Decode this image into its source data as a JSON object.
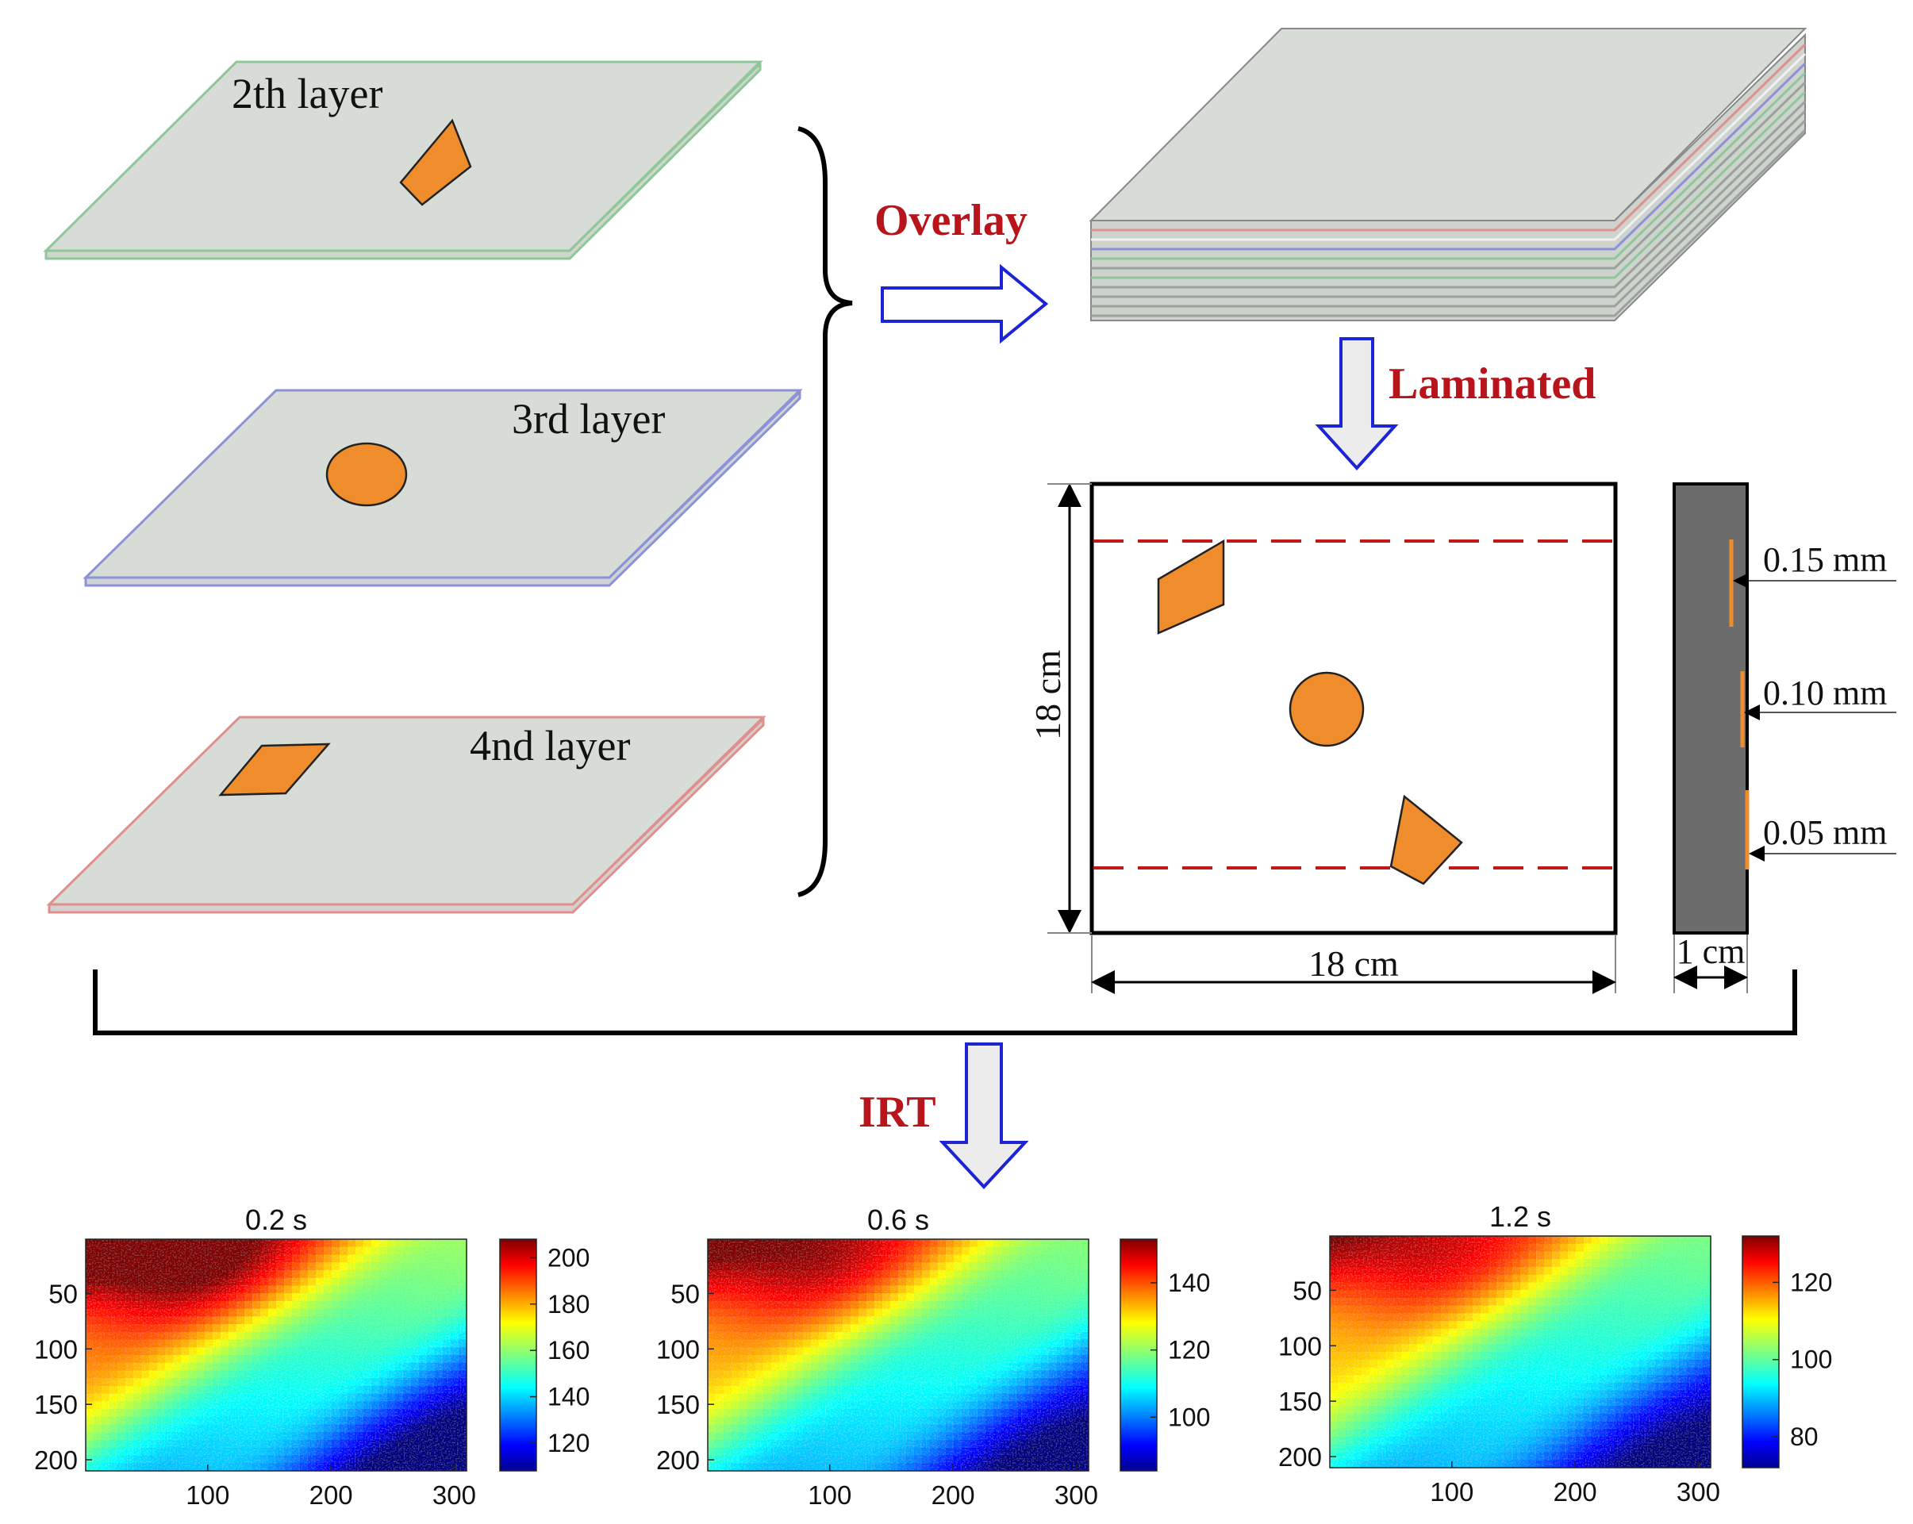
{
  "colors": {
    "plate_fill": "#d8dcd6",
    "green_edge": "#8fc79a",
    "blue_edge": "#8c92d6",
    "red_edge": "#e0908c",
    "defect_orange": "#ef8c2c",
    "label_red": "#b8141c",
    "arrow_blue": "#1c24d6",
    "dashed_red": "#c01818",
    "side_gray": "#6c6c6c"
  },
  "layers": [
    {
      "label": "2th layer",
      "defect": "quadrilateral",
      "edge_color": "green"
    },
    {
      "label": "3rd layer",
      "defect": "circle",
      "edge_color": "blue"
    },
    {
      "label": "4nd layer",
      "defect": "parallelogram",
      "edge_color": "red"
    }
  ],
  "steps": {
    "overlay": "Overlay",
    "laminated": "Laminated",
    "irt": "IRT"
  },
  "specimen": {
    "width_label": "18 cm",
    "height_label": "18 cm",
    "thickness_label": "1 cm",
    "depths": [
      "0.15 mm",
      "0.10 mm",
      "0.05 mm"
    ]
  },
  "thermograms": [
    {
      "title": "0.2 s",
      "x_ticks": [
        "100",
        "200",
        "300"
      ],
      "y_ticks": [
        "50",
        "100",
        "150",
        "200"
      ],
      "colorbar_ticks": [
        "200",
        "180",
        "160",
        "140",
        "120"
      ],
      "clim": [
        108,
        208
      ],
      "hot_level": 1.0
    },
    {
      "title": "0.6 s",
      "x_ticks": [
        "100",
        "200",
        "300"
      ],
      "y_ticks": [
        "50",
        "100",
        "150",
        "200"
      ],
      "colorbar_ticks": [
        "140",
        "120",
        "100"
      ],
      "clim": [
        84,
        153
      ],
      "hot_level": 0.82
    },
    {
      "title": "1.2 s",
      "x_ticks": [
        "100",
        "200",
        "300"
      ],
      "y_ticks": [
        "50",
        "100",
        "150",
        "200"
      ],
      "colorbar_ticks": [
        "120",
        "100",
        "80"
      ],
      "clim": [
        72,
        132
      ],
      "hot_level": 0.72
    }
  ]
}
